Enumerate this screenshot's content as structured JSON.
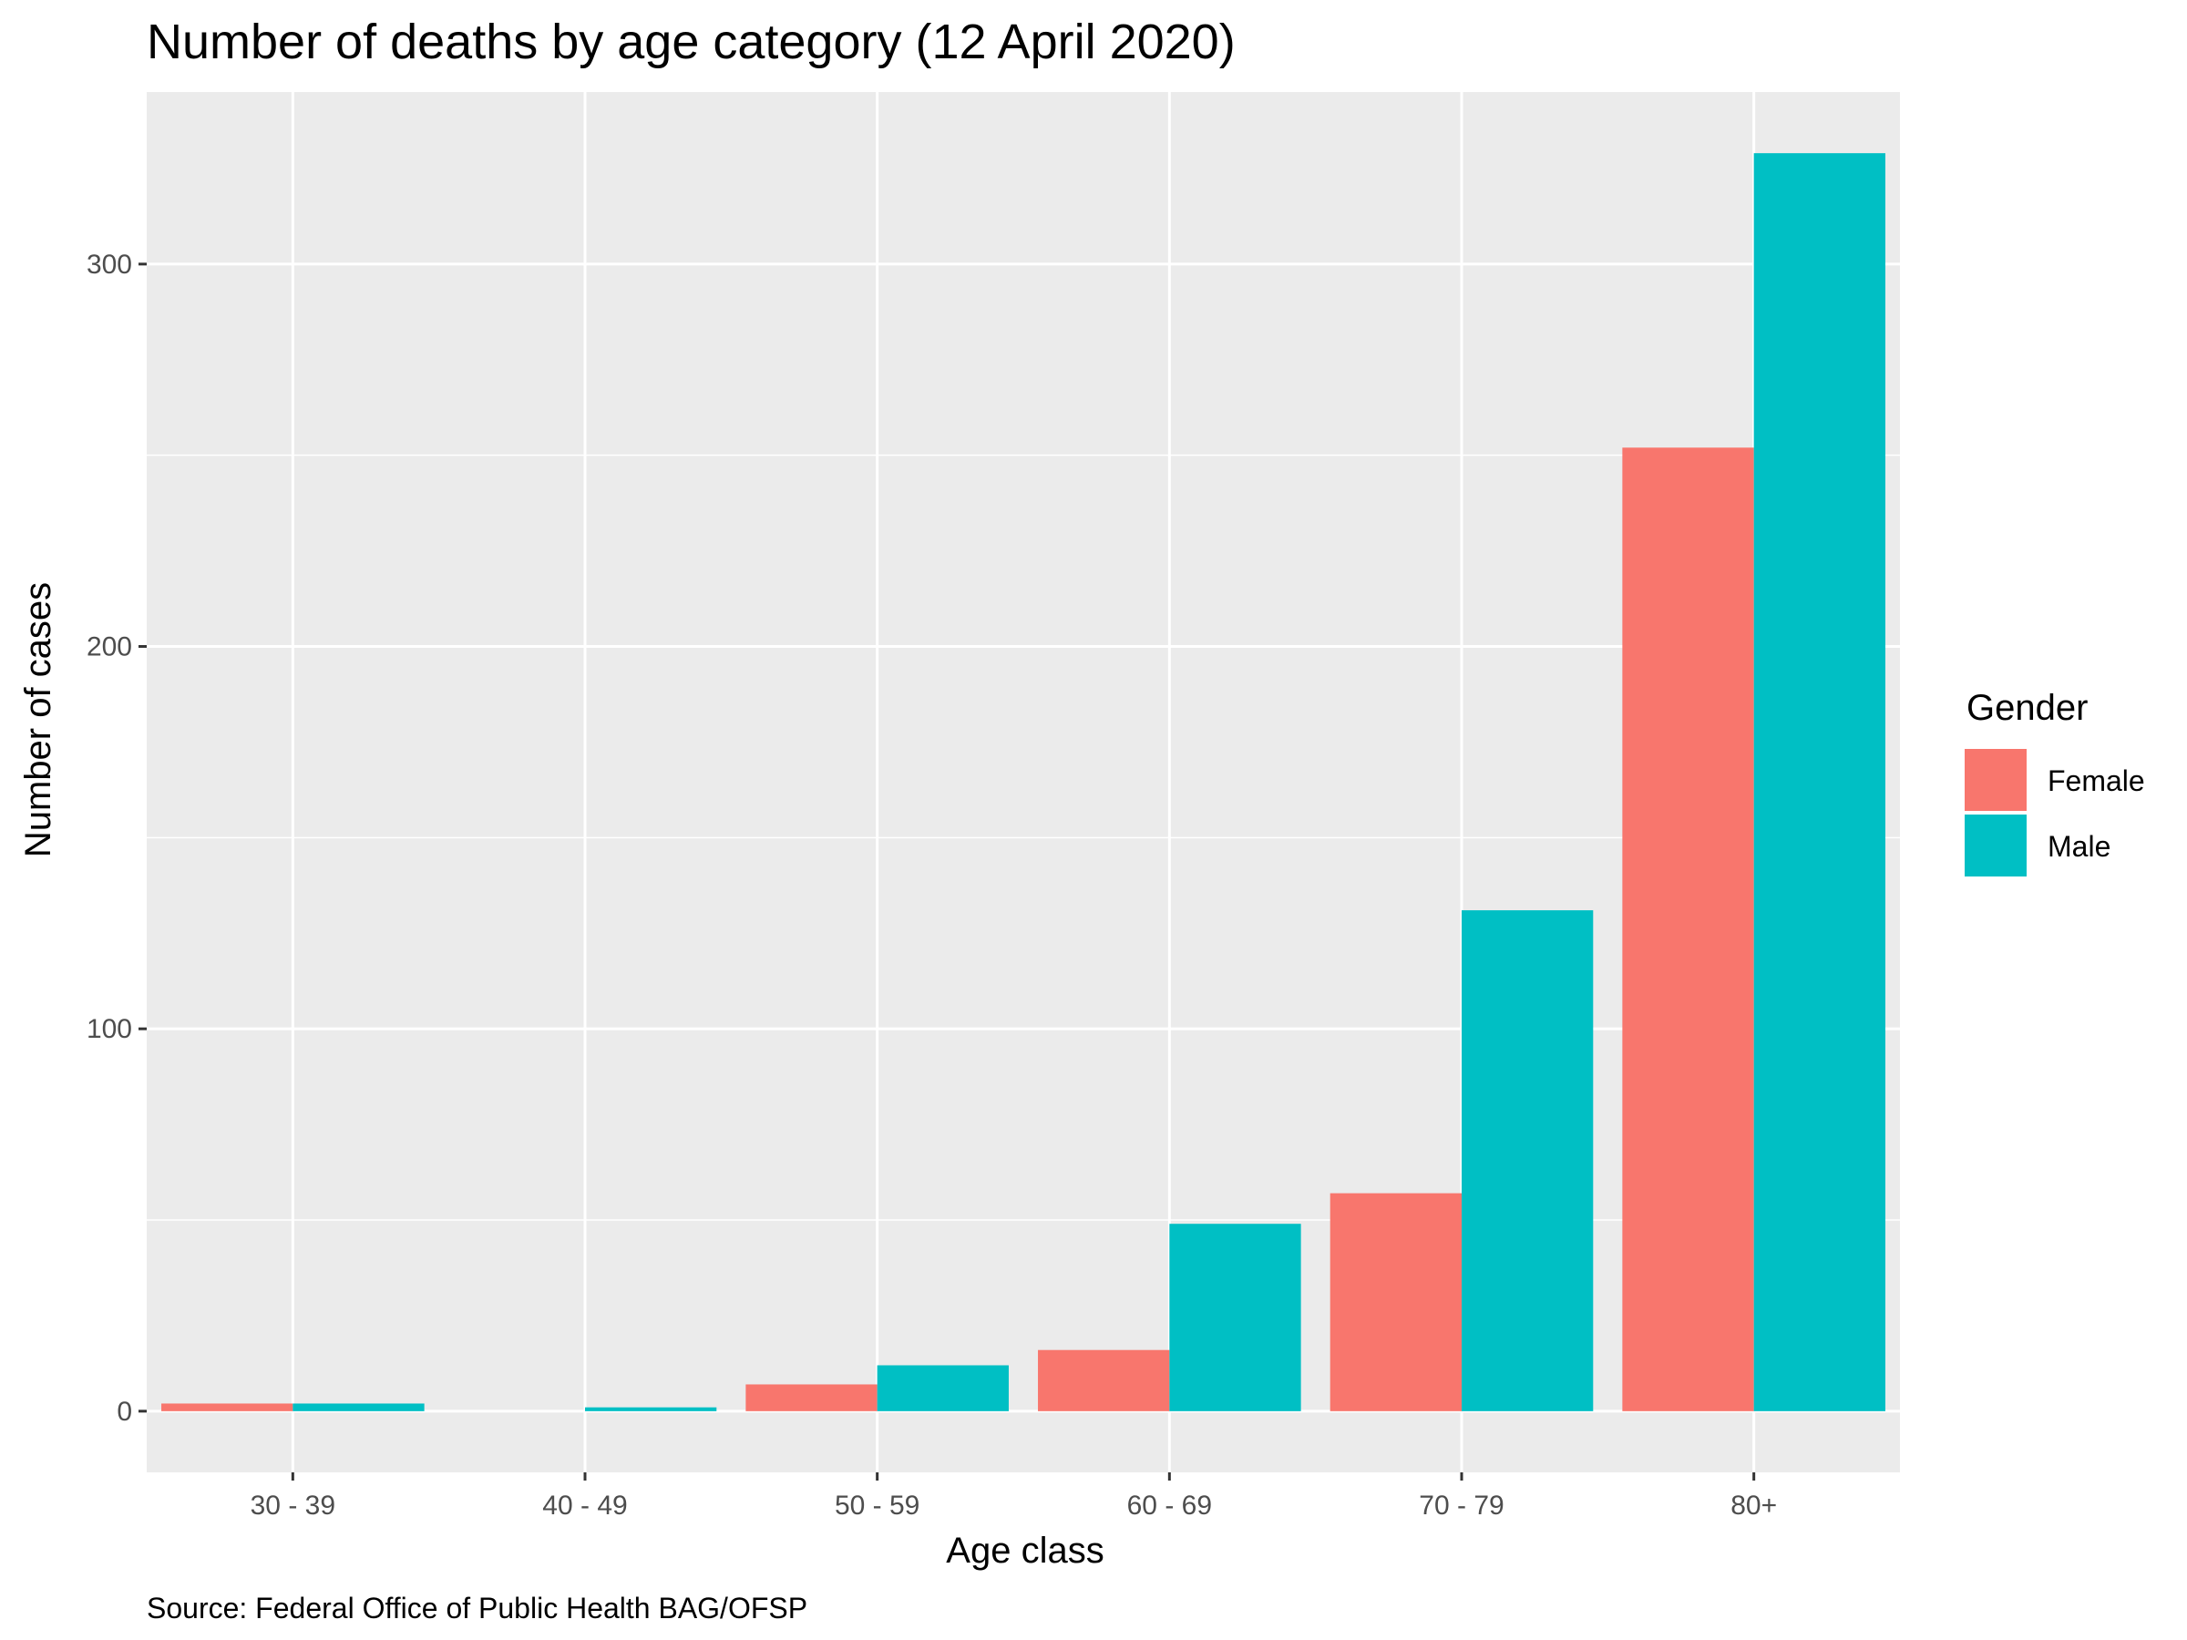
{
  "chart_data": {
    "type": "bar",
    "title": "Number of deaths by age category (12 April 2020)",
    "xlabel": "Age class",
    "ylabel": "Number of cases",
    "caption": "Source: Federal Office of Public Health BAG/OFSP",
    "categories": [
      "30 - 39",
      "40 - 49",
      "50 - 59",
      "60 - 69",
      "70 - 79",
      "80+"
    ],
    "series": [
      {
        "name": "Female",
        "color": "#F8766D",
        "values": [
          2,
          0,
          7,
          16,
          57,
          252
        ]
      },
      {
        "name": "Male",
        "color": "#00BFC4",
        "values": [
          2,
          1,
          12,
          49,
          131,
          329
        ]
      }
    ],
    "legend": {
      "title": "Gender",
      "placement": "right"
    },
    "ylim": [
      -16,
      345
    ],
    "yticks": [
      0,
      100,
      200,
      300
    ],
    "grid": true,
    "panel_color": "#EBEBEB"
  }
}
